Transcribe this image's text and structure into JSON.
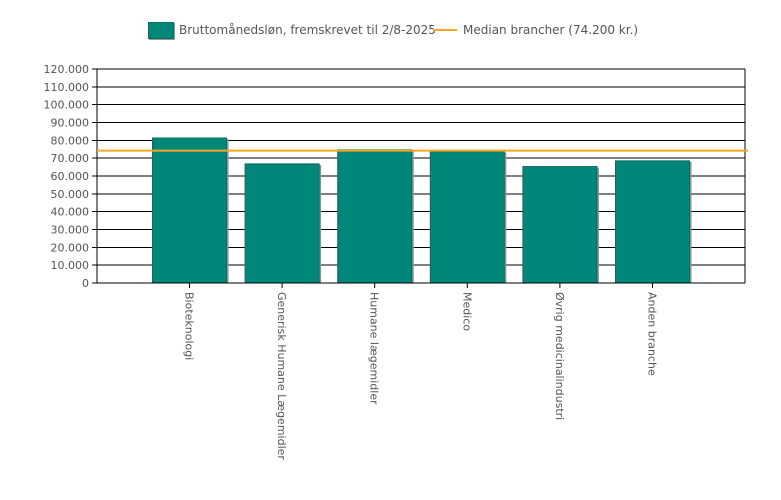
{
  "colors": {
    "bar": "#00877a",
    "bar_border": "#0f6b5f",
    "median": "#f5a623",
    "axis": "#000000",
    "text": "#555555"
  },
  "legend": {
    "bar_label": "Bruttomånedsløn, fremskrevet til 2/8-2025",
    "median_label": "Median brancher (74.200 kr.)"
  },
  "chart_data": {
    "type": "bar",
    "title": "",
    "xlabel": "",
    "ylabel": "",
    "categories": [
      "Bioteknologi",
      "Generisk Humane Lægemidler",
      "Humane lægemidler",
      "Medico",
      "Øvrig medicinalindustri",
      "Anden branche"
    ],
    "series": [
      {
        "name": "Bruttomånedsløn, fremskrevet til 2/8-2025",
        "values": [
          81300,
          66800,
          74700,
          73800,
          65300,
          68500
        ]
      }
    ],
    "reference_line": {
      "name": "Median brancher (74.200 kr.)",
      "value": 74200
    },
    "ylim": [
      0,
      120000
    ],
    "yticks": [
      0,
      10000,
      20000,
      30000,
      40000,
      50000,
      60000,
      70000,
      80000,
      90000,
      100000,
      110000,
      120000
    ],
    "ytick_labels": [
      "0",
      "10.000",
      "20.000",
      "30.000",
      "40.000",
      "50.000",
      "60.000",
      "70.000",
      "80.000",
      "90.000",
      "100.000",
      "110.000",
      "120.000"
    ],
    "grid": true,
    "legend_position": "top-center"
  }
}
